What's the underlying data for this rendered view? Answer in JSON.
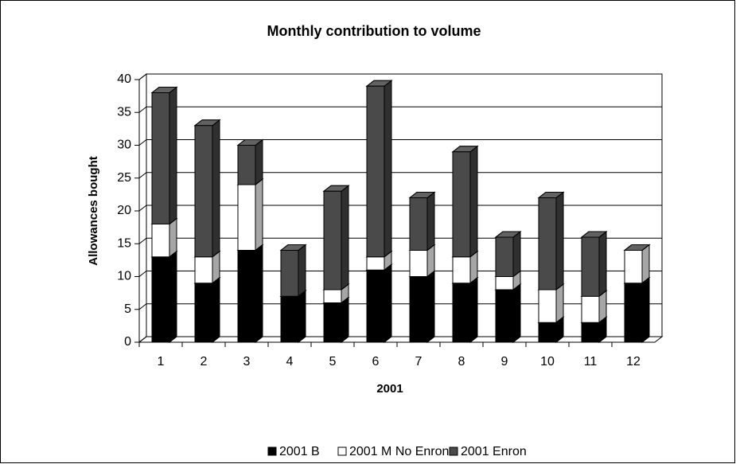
{
  "chart_data": {
    "type": "stacked-bar-3d",
    "title": "Monthly contribution to volume",
    "xlabel": "2001",
    "ylabel": "Allowances bought",
    "categories": [
      "1",
      "2",
      "3",
      "4",
      "5",
      "6",
      "7",
      "8",
      "9",
      "10",
      "11",
      "12"
    ],
    "series": [
      {
        "name": "2001 B",
        "color": "#000000",
        "values": [
          13,
          9,
          14,
          7,
          6,
          11,
          10,
          9,
          8,
          3,
          3,
          9
        ]
      },
      {
        "name": "2001 M No Enron",
        "color": "#ffffff",
        "values": [
          5,
          4,
          10,
          0,
          2,
          2,
          4,
          4,
          2,
          5,
          4,
          5
        ]
      },
      {
        "name": "2001 Enron",
        "color": "#4a4a4a",
        "values": [
          20,
          20,
          6,
          7,
          15,
          26,
          8,
          16,
          6,
          14,
          9,
          0
        ]
      }
    ],
    "ylim": [
      0,
      40
    ],
    "yticks": [
      0,
      5,
      10,
      15,
      20,
      25,
      30,
      35,
      40
    ],
    "grid": true
  }
}
